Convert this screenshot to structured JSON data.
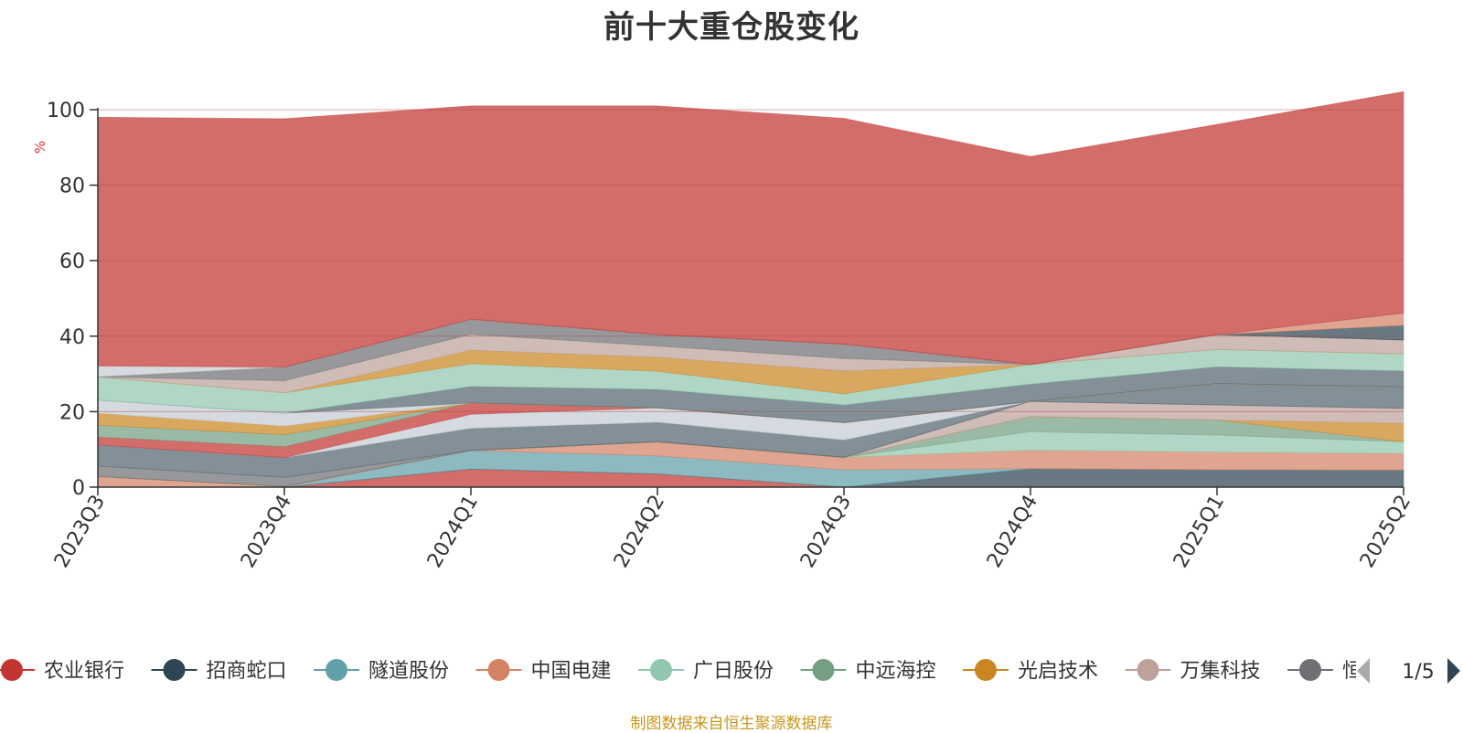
{
  "title": "前十大重仓股变化",
  "source_note": "制图数据来自恒生聚源数据库",
  "legend_page": "1/5",
  "legend": [
    {
      "name": "农业银行",
      "color": "#c23531"
    },
    {
      "name": "招商蛇口",
      "color": "#2f4554"
    },
    {
      "name": "隧道股份",
      "color": "#61a0a8"
    },
    {
      "name": "中国电建",
      "color": "#d48265"
    },
    {
      "name": "广日股份",
      "color": "#91c7ae"
    },
    {
      "name": "中远海控",
      "color": "#749f83"
    },
    {
      "name": "光启技术",
      "color": "#ca8622"
    },
    {
      "name": "万集科技",
      "color": "#bda29a"
    },
    {
      "name": "恒",
      "color": "#6e7074"
    }
  ],
  "chart_data": {
    "type": "area",
    "stacked": true,
    "ylabel": "%",
    "ylim": [
      0,
      100
    ],
    "yticks": [
      0,
      20,
      40,
      60,
      80,
      100
    ],
    "x": [
      "2023Q3",
      "2023Q4",
      "2024Q1",
      "2024Q2",
      "2024Q3",
      "2024Q4",
      "2025Q1",
      "2025Q2"
    ],
    "grid": true,
    "legend_position": "bottom",
    "series": [
      {
        "color": "#c23531",
        "values": [
          0,
          0,
          4.8,
          3.5,
          0,
          0,
          0,
          0
        ]
      },
      {
        "color": "#2f4554",
        "values": [
          0,
          0,
          0,
          0,
          0,
          4.9,
          4.6,
          4.5
        ]
      },
      {
        "color": "#61a0a8",
        "values": [
          0,
          0,
          4.9,
          4.8,
          4.6,
          0,
          0,
          0
        ]
      },
      {
        "color": "#d48265",
        "values": [
          2.8,
          0.2,
          0,
          3.7,
          3.3,
          4.9,
          4.7,
          4.4
        ]
      },
      {
        "color": "#91c7ae",
        "values": [
          0,
          0,
          0,
          0,
          0,
          4.9,
          4.5,
          3.1
        ]
      },
      {
        "color": "#749f83",
        "values": [
          0,
          0,
          0,
          0,
          0,
          4.0,
          4.0,
          0
        ]
      },
      {
        "color": "#ca8622",
        "values": [
          0,
          0,
          0,
          0,
          0,
          0,
          0,
          4.9
        ]
      },
      {
        "color": "#bda29a",
        "values": [
          0,
          0,
          0,
          0,
          0,
          4.0,
          4.0,
          4.0
        ]
      },
      {
        "color": "#6e7074",
        "values": [
          2.8,
          2.4,
          0,
          0,
          0,
          0,
          0,
          0
        ]
      },
      {
        "color": "#546570",
        "values": [
          5.6,
          5.2,
          5.9,
          5.2,
          4.6,
          0,
          5.6,
          5.6
        ]
      },
      {
        "color": "#c4ccd3",
        "values": [
          0,
          0,
          3.7,
          3.8,
          4.6,
          0,
          0,
          0
        ]
      },
      {
        "color": "#c23531",
        "values": [
          2.1,
          2.9,
          3.0,
          0,
          0,
          0,
          0,
          0
        ]
      },
      {
        "color": "#749f83",
        "values": [
          3.1,
          3.2,
          0,
          0,
          0,
          0,
          0,
          0
        ]
      },
      {
        "color": "#ca8622",
        "values": [
          3.2,
          2.3,
          0,
          0,
          0,
          0,
          0,
          0
        ]
      },
      {
        "color": "#c4ccd3",
        "values": [
          3.5,
          3.4,
          0,
          0,
          0,
          0,
          0,
          0
        ]
      },
      {
        "color": "#546570",
        "values": [
          0,
          0,
          4.4,
          4.9,
          4.7,
          4.6,
          4.5,
          4.3
        ]
      },
      {
        "color": "#91c7ae",
        "values": [
          6.1,
          5.4,
          6.0,
          4.8,
          2.9,
          5.2,
          4.6,
          4.5
        ]
      },
      {
        "color": "#ca8622",
        "values": [
          0,
          0,
          3.6,
          3.7,
          6.1,
          0,
          0,
          0
        ]
      },
      {
        "color": "#bda29a",
        "values": [
          0,
          3.2,
          4.2,
          3.0,
          3.3,
          0,
          3.9,
          3.7
        ]
      },
      {
        "color": "#6e7074",
        "values": [
          0,
          3.6,
          4.0,
          3.0,
          3.8,
          0,
          0,
          0
        ]
      },
      {
        "color": "#2f4554",
        "values": [
          0,
          0,
          0,
          0,
          0,
          0,
          0,
          3.8
        ]
      },
      {
        "color": "#d48265",
        "values": [
          0,
          0,
          0,
          0,
          0,
          0,
          0,
          3.3
        ]
      },
      {
        "color": "#c4ccd3",
        "values": [
          2.9,
          0,
          0,
          0,
          0,
          0,
          0,
          0
        ]
      },
      {
        "color": "#c23531",
        "values": [
          65.9,
          65.8,
          56.5,
          60.6,
          59.8,
          55.1,
          55.7,
          58.7
        ]
      }
    ]
  }
}
